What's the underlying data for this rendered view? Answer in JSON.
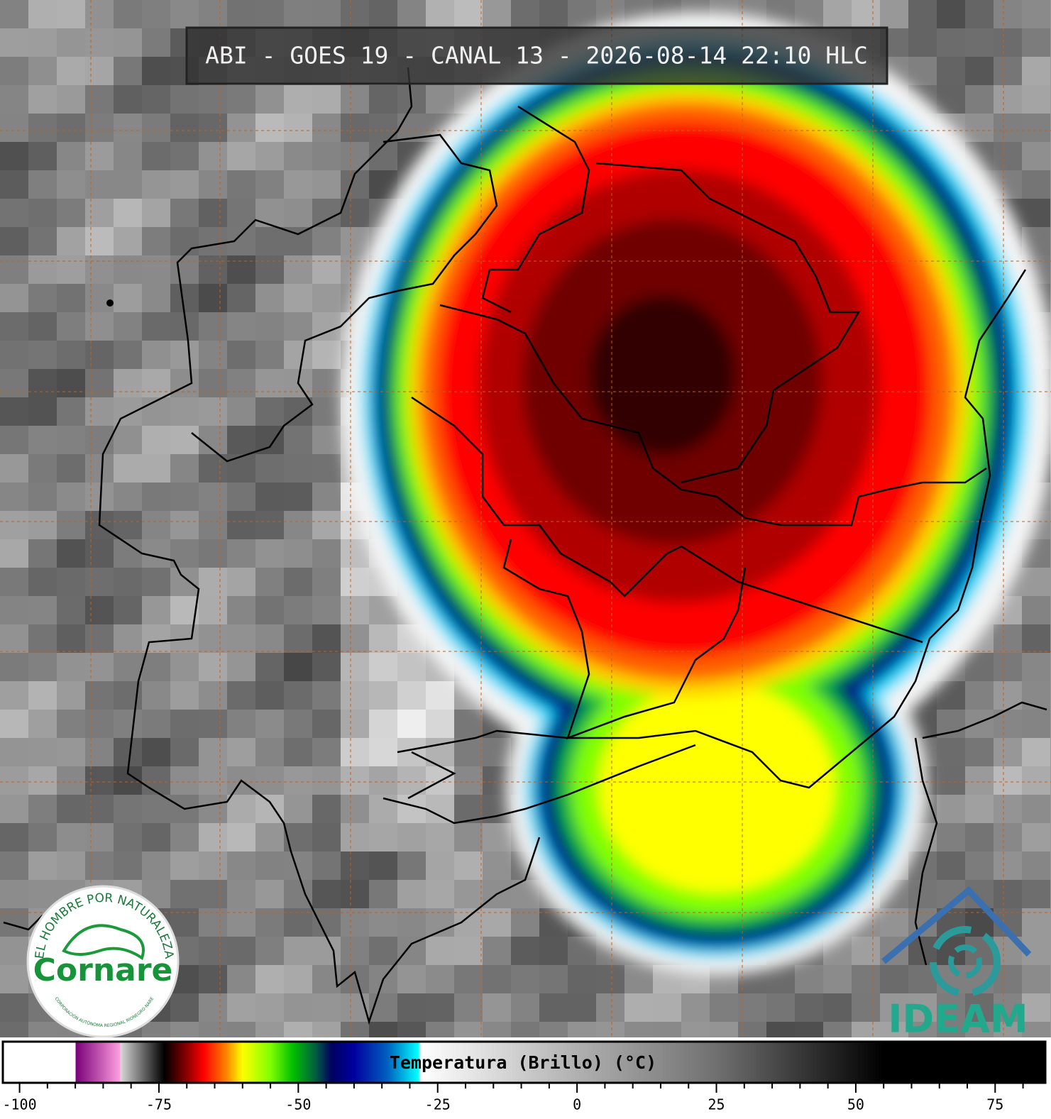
{
  "header": {
    "title": "ABI - GOES 19 - CANAL 13 - 2026-08-14 22:10 HLC"
  },
  "colorbar": {
    "label": "Temperatura (Brillo) (°C)",
    "range": [
      -103,
      84
    ],
    "ticks": [
      -100,
      -75,
      -50,
      -25,
      0,
      25,
      50,
      75
    ],
    "minor_ticks": [
      -95,
      -90,
      -85,
      -80,
      -70,
      -65,
      -60,
      -55,
      -45,
      -40,
      -35,
      -30,
      -20,
      -15,
      -10,
      -5,
      5,
      10,
      15,
      20,
      30,
      35,
      40,
      45,
      55,
      60,
      65,
      70,
      80
    ],
    "stops": [
      {
        "value": -103,
        "color": "#ffffff"
      },
      {
        "value": -90,
        "color": "#ffffff"
      },
      {
        "value": -89.9,
        "color": "#7a007a"
      },
      {
        "value": -82,
        "color": "#ff9ee0"
      },
      {
        "value": -81.9,
        "color": "#d8d8d8"
      },
      {
        "value": -75,
        "color": "#1a1a1a"
      },
      {
        "value": -74,
        "color": "#000000"
      },
      {
        "value": -70,
        "color": "#8b0000"
      },
      {
        "value": -67,
        "color": "#ff0000"
      },
      {
        "value": -63,
        "color": "#ff8000"
      },
      {
        "value": -60,
        "color": "#ffff00"
      },
      {
        "value": -55,
        "color": "#80ff00"
      },
      {
        "value": -51,
        "color": "#00c000"
      },
      {
        "value": -47,
        "color": "#006040"
      },
      {
        "value": -44,
        "color": "#000060"
      },
      {
        "value": -40,
        "color": "#0000a0"
      },
      {
        "value": -34,
        "color": "#0060c0"
      },
      {
        "value": -28.5,
        "color": "#00ffff"
      },
      {
        "value": -28,
        "color": "#ffffff"
      },
      {
        "value": 0,
        "color": "#b0b0b0"
      },
      {
        "value": 25,
        "color": "#707070"
      },
      {
        "value": 55,
        "color": "#000000"
      },
      {
        "value": 84,
        "color": "#000000"
      }
    ]
  },
  "logos": {
    "cornare": {
      "motto": "EL HOMBRE POR NATURALEZA",
      "name": "Cornare",
      "subtitle": "CORPORACIÓN AUTÓNOMA REGIONAL RIONEGRO-NARE"
    },
    "ideam": {
      "name": "IDEAM"
    }
  }
}
